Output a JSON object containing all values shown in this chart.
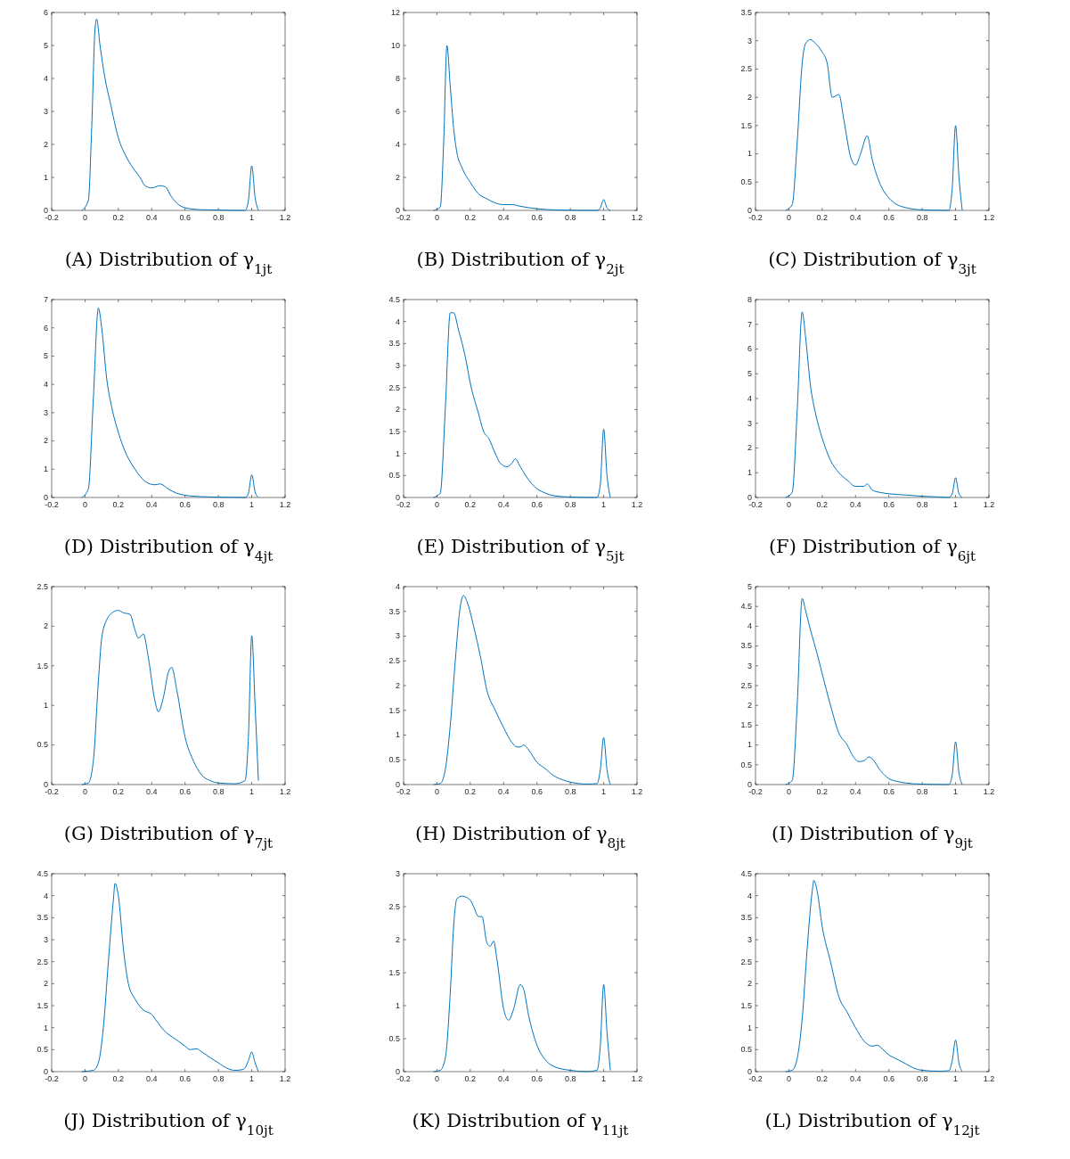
{
  "chart_data": [
    {
      "type": "line",
      "title": "(A) Distribution of γ$_{1jt}$",
      "xlim": [
        -0.2,
        1.2
      ],
      "xticks": [
        -0.2,
        0,
        0.2,
        0.4,
        0.6,
        0.8,
        1,
        1.2
      ],
      "ylim": [
        0,
        6
      ],
      "yticks": [
        0,
        1,
        2,
        3,
        4,
        5,
        6
      ],
      "color": "#0072bd",
      "x": [
        -0.02,
        0.02,
        0.04,
        0.06,
        0.07,
        0.09,
        0.12,
        0.15,
        0.2,
        0.25,
        0.3,
        0.33,
        0.36,
        0.4,
        0.45,
        0.48,
        0.52,
        0.56,
        0.6,
        0.7,
        0.8,
        0.9,
        0.96,
        0.98,
        1,
        1.02,
        1.04
      ],
      "values": [
        0,
        0.3,
        2.5,
        5.5,
        5.8,
        5,
        4,
        3.3,
        2.2,
        1.6,
        1.2,
        1,
        0.75,
        0.68,
        0.75,
        0.72,
        0.4,
        0.18,
        0.08,
        0.02,
        0.01,
        0,
        0,
        0.3,
        1.35,
        0.4,
        0
      ]
    },
    {
      "type": "line",
      "title": "(B) Distribution of γ$_{2jt}$",
      "xlim": [
        -0.2,
        1.2
      ],
      "xticks": [
        -0.2,
        0,
        0.2,
        0.4,
        0.6,
        0.8,
        1,
        1.2
      ],
      "ylim": [
        0,
        12
      ],
      "yticks": [
        0,
        2,
        4,
        6,
        8,
        10,
        12
      ],
      "color": "#0072bd",
      "x": [
        -0.02,
        0.02,
        0.04,
        0.06,
        0.08,
        0.1,
        0.12,
        0.15,
        0.2,
        0.25,
        0.3,
        0.35,
        0.4,
        0.45,
        0.5,
        0.6,
        0.7,
        0.8,
        0.96,
        0.98,
        1,
        1.02,
        1.04
      ],
      "values": [
        0,
        0.2,
        4,
        10,
        7.5,
        5,
        3.5,
        2.6,
        1.7,
        1,
        0.7,
        0.45,
        0.35,
        0.35,
        0.25,
        0.1,
        0.03,
        0.01,
        0,
        0.15,
        0.65,
        0.15,
        0
      ]
    },
    {
      "type": "line",
      "title": "(C) Distribution of γ$_{3jt}$",
      "xlim": [
        -0.2,
        1.2
      ],
      "xticks": [
        -0.2,
        0,
        0.2,
        0.4,
        0.6,
        0.8,
        1,
        1.2
      ],
      "ylim": [
        0,
        3.5
      ],
      "yticks": [
        0,
        0.5,
        1,
        1.5,
        2,
        2.5,
        3,
        3.5
      ],
      "color": "#0072bd",
      "x": [
        -0.02,
        0.02,
        0.05,
        0.08,
        0.1,
        0.13,
        0.16,
        0.2,
        0.23,
        0.26,
        0.3,
        0.33,
        0.37,
        0.4,
        0.43,
        0.47,
        0.5,
        0.55,
        0.6,
        0.65,
        0.7,
        0.8,
        0.96,
        0.98,
        1,
        1.02,
        1.04
      ],
      "values": [
        0,
        0.1,
        1.2,
        2.6,
        2.95,
        3.02,
        2.95,
        2.8,
        2.6,
        2,
        2.05,
        1.6,
        0.95,
        0.8,
        1,
        1.32,
        0.9,
        0.45,
        0.22,
        0.1,
        0.05,
        0.01,
        0,
        0.4,
        1.5,
        0.6,
        0
      ]
    },
    {
      "type": "line",
      "title": "(D) Distribution of γ$_{4jt}$",
      "xlim": [
        -0.2,
        1.2
      ],
      "xticks": [
        -0.2,
        0,
        0.2,
        0.4,
        0.6,
        0.8,
        1,
        1.2
      ],
      "ylim": [
        0,
        7
      ],
      "yticks": [
        0,
        1,
        2,
        3,
        4,
        5,
        6,
        7
      ],
      "color": "#0072bd",
      "x": [
        -0.02,
        0.02,
        0.05,
        0.08,
        0.1,
        0.13,
        0.16,
        0.2,
        0.25,
        0.3,
        0.33,
        0.38,
        0.42,
        0.45,
        0.5,
        0.55,
        0.6,
        0.7,
        0.8,
        0.96,
        0.98,
        1,
        1.02,
        1.04
      ],
      "values": [
        0,
        0.3,
        3.5,
        6.7,
        6,
        4.2,
        3.2,
        2.3,
        1.5,
        1,
        0.75,
        0.5,
        0.45,
        0.48,
        0.3,
        0.15,
        0.08,
        0.03,
        0.01,
        0,
        0.15,
        0.8,
        0.2,
        0
      ]
    },
    {
      "type": "line",
      "title": "(E) Distribution of γ$_{5jt}$",
      "xlim": [
        -0.2,
        1.2
      ],
      "xticks": [
        -0.2,
        0,
        0.2,
        0.4,
        0.6,
        0.8,
        1,
        1.2
      ],
      "ylim": [
        0,
        4.5
      ],
      "yticks": [
        0,
        0.5,
        1,
        1.5,
        2,
        2.5,
        3,
        3.5,
        4,
        4.5
      ],
      "color": "#0072bd",
      "x": [
        -0.02,
        0.02,
        0.05,
        0.08,
        0.1,
        0.13,
        0.17,
        0.2,
        0.25,
        0.28,
        0.31,
        0.35,
        0.38,
        0.42,
        0.45,
        0.47,
        0.5,
        0.55,
        0.6,
        0.65,
        0.7,
        0.8,
        0.96,
        0.98,
        1,
        1.02,
        1.04
      ],
      "values": [
        0,
        0.1,
        2,
        4.2,
        4.2,
        3.8,
        3.2,
        2.6,
        1.9,
        1.5,
        1.35,
        1,
        0.78,
        0.7,
        0.78,
        0.88,
        0.7,
        0.4,
        0.2,
        0.1,
        0.04,
        0.01,
        0,
        0.3,
        1.55,
        0.5,
        0
      ]
    },
    {
      "type": "line",
      "title": "(F) Distribution of γ$_{6jt}$",
      "xlim": [
        -0.2,
        1.2
      ],
      "xticks": [
        -0.2,
        0,
        0.2,
        0.4,
        0.6,
        0.8,
        1,
        1.2
      ],
      "ylim": [
        0,
        8
      ],
      "yticks": [
        0,
        1,
        2,
        3,
        4,
        5,
        6,
        7,
        8
      ],
      "color": "#0072bd",
      "x": [
        -0.02,
        0.02,
        0.05,
        0.08,
        0.1,
        0.13,
        0.16,
        0.2,
        0.25,
        0.3,
        0.35,
        0.4,
        0.43,
        0.45,
        0.47,
        0.5,
        0.55,
        0.6,
        0.7,
        0.8,
        0.9,
        0.96,
        0.98,
        1,
        1.02,
        1.04
      ],
      "values": [
        0,
        0.2,
        3.5,
        7.5,
        6.5,
        4.5,
        3.4,
        2.4,
        1.5,
        1,
        0.7,
        0.45,
        0.45,
        0.45,
        0.55,
        0.3,
        0.2,
        0.15,
        0.1,
        0.05,
        0.02,
        0,
        0.15,
        0.8,
        0.15,
        0
      ]
    },
    {
      "type": "line",
      "title": "(G) Distribution of γ$_{7jt}$",
      "xlim": [
        -0.2,
        1.2
      ],
      "xticks": [
        -0.2,
        0,
        0.2,
        0.4,
        0.6,
        0.8,
        1,
        1.2
      ],
      "ylim": [
        0,
        2.5
      ],
      "yticks": [
        0,
        0.5,
        1,
        1.5,
        2,
        2.5
      ],
      "color": "#0072bd",
      "x": [
        -0.02,
        0.02,
        0.05,
        0.08,
        0.1,
        0.13,
        0.17,
        0.2,
        0.23,
        0.27,
        0.3,
        0.32,
        0.35,
        0.38,
        0.42,
        0.44,
        0.47,
        0.5,
        0.52,
        0.55,
        0.6,
        0.65,
        0.7,
        0.75,
        0.8,
        0.9,
        0.96,
        0.98,
        1,
        1.02,
        1.04
      ],
      "values": [
        0,
        0.02,
        0.3,
        1.3,
        1.85,
        2.08,
        2.18,
        2.2,
        2.17,
        2.15,
        1.95,
        1.85,
        1.9,
        1.6,
        1.05,
        0.92,
        1.1,
        1.42,
        1.48,
        1.2,
        0.6,
        0.3,
        0.12,
        0.05,
        0.02,
        0.01,
        0.05,
        0.6,
        1.88,
        1,
        0.05
      ]
    },
    {
      "type": "line",
      "title": "(H) Distribution of γ$_{8jt}$",
      "xlim": [
        -0.2,
        1.2
      ],
      "xticks": [
        -0.2,
        0,
        0.2,
        0.4,
        0.6,
        0.8,
        1,
        1.2
      ],
      "ylim": [
        0,
        4
      ],
      "yticks": [
        0,
        0.5,
        1,
        1.5,
        2,
        2.5,
        3,
        3.5,
        4
      ],
      "color": "#0072bd",
      "x": [
        -0.02,
        0.02,
        0.05,
        0.08,
        0.11,
        0.14,
        0.16,
        0.18,
        0.22,
        0.26,
        0.3,
        0.35,
        0.4,
        0.45,
        0.48,
        0.5,
        0.52,
        0.55,
        0.6,
        0.65,
        0.7,
        0.75,
        0.8,
        0.9,
        0.96,
        0.98,
        1,
        1.02,
        1.04
      ],
      "values": [
        0,
        0.02,
        0.3,
        1.2,
        2.5,
        3.6,
        3.82,
        3.7,
        3.2,
        2.6,
        1.9,
        1.5,
        1.15,
        0.85,
        0.76,
        0.76,
        0.8,
        0.7,
        0.45,
        0.32,
        0.18,
        0.1,
        0.05,
        0.01,
        0.02,
        0.3,
        0.95,
        0.3,
        0
      ]
    },
    {
      "type": "line",
      "title": "(I) Distribution of γ$_{9jt}$",
      "xlim": [
        -0.2,
        1.2
      ],
      "xticks": [
        -0.2,
        0,
        0.2,
        0.4,
        0.6,
        0.8,
        1,
        1.2
      ],
      "ylim": [
        0,
        5
      ],
      "yticks": [
        0,
        0.5,
        1,
        1.5,
        2,
        2.5,
        3,
        3.5,
        4,
        4.5,
        5
      ],
      "color": "#0072bd",
      "x": [
        -0.02,
        0.02,
        0.05,
        0.08,
        0.1,
        0.13,
        0.17,
        0.2,
        0.25,
        0.3,
        0.35,
        0.38,
        0.42,
        0.45,
        0.48,
        0.5,
        0.55,
        0.6,
        0.65,
        0.7,
        0.8,
        0.96,
        0.98,
        1,
        1.02,
        1.04
      ],
      "values": [
        0,
        0.1,
        2,
        4.7,
        4.4,
        3.9,
        3.3,
        2.8,
        2,
        1.3,
        1,
        0.75,
        0.58,
        0.6,
        0.7,
        0.65,
        0.35,
        0.15,
        0.08,
        0.04,
        0.01,
        0,
        0.25,
        1.08,
        0.3,
        0
      ]
    },
    {
      "type": "line",
      "title": "(J) Distribution of γ$_{10jt}$",
      "xlim": [
        -0.2,
        1.2
      ],
      "xticks": [
        -0.2,
        0,
        0.2,
        0.4,
        0.6,
        0.8,
        1,
        1.2
      ],
      "ylim": [
        0,
        4.5
      ],
      "yticks": [
        0,
        0.5,
        1,
        1.5,
        2,
        2.5,
        3,
        3.5,
        4,
        4.5
      ],
      "color": "#0072bd",
      "x": [
        -0.02,
        0.05,
        0.08,
        0.11,
        0.14,
        0.17,
        0.18,
        0.2,
        0.23,
        0.26,
        0.3,
        0.35,
        0.4,
        0.43,
        0.47,
        0.5,
        0.55,
        0.6,
        0.63,
        0.67,
        0.7,
        0.75,
        0.8,
        0.85,
        0.9,
        0.95,
        0.98,
        1,
        1.02,
        1.04
      ],
      "values": [
        0,
        0.03,
        0.2,
        1,
        2.5,
        3.9,
        4.28,
        4,
        2.8,
        2,
        1.65,
        1.4,
        1.3,
        1.15,
        0.95,
        0.85,
        0.72,
        0.58,
        0.5,
        0.52,
        0.45,
        0.32,
        0.2,
        0.08,
        0.03,
        0.05,
        0.25,
        0.45,
        0.2,
        0
      ]
    },
    {
      "type": "line",
      "title": "(K) Distribution of γ$_{11jt}$",
      "xlim": [
        -0.2,
        1.2
      ],
      "xticks": [
        -0.2,
        0,
        0.2,
        0.4,
        0.6,
        0.8,
        1,
        1.2
      ],
      "ylim": [
        0,
        3
      ],
      "yticks": [
        0,
        0.5,
        1,
        1.5,
        2,
        2.5,
        3
      ],
      "color": "#0072bd",
      "x": [
        -0.02,
        0.02,
        0.05,
        0.08,
        0.1,
        0.12,
        0.15,
        0.2,
        0.22,
        0.25,
        0.27,
        0.3,
        0.32,
        0.34,
        0.36,
        0.4,
        0.43,
        0.46,
        0.5,
        0.52,
        0.55,
        0.6,
        0.65,
        0.7,
        0.8,
        0.9,
        0.96,
        0.98,
        1,
        1.02,
        1.04
      ],
      "values": [
        0,
        0.02,
        0.2,
        1.2,
        2.2,
        2.62,
        2.66,
        2.6,
        2.5,
        2.35,
        2.35,
        1.95,
        1.9,
        1.98,
        1.7,
        0.95,
        0.78,
        0.95,
        1.32,
        1.25,
        0.85,
        0.4,
        0.18,
        0.08,
        0.02,
        0,
        0.02,
        0.4,
        1.32,
        0.6,
        0.02
      ]
    },
    {
      "type": "line",
      "title": "(L) Distribution of γ$_{12jt}$",
      "xlim": [
        -0.2,
        1.2
      ],
      "xticks": [
        -0.2,
        0,
        0.2,
        0.4,
        0.6,
        0.8,
        1,
        1.2
      ],
      "ylim": [
        0,
        4.5
      ],
      "yticks": [
        0,
        0.5,
        1,
        1.5,
        2,
        2.5,
        3,
        3.5,
        4,
        4.5
      ],
      "color": "#0072bd",
      "x": [
        -0.02,
        0.02,
        0.05,
        0.08,
        0.11,
        0.14,
        0.15,
        0.17,
        0.2,
        0.25,
        0.3,
        0.35,
        0.4,
        0.45,
        0.5,
        0.53,
        0.56,
        0.6,
        0.65,
        0.7,
        0.75,
        0.8,
        0.9,
        0.96,
        0.98,
        1,
        1.02,
        1.04
      ],
      "values": [
        0,
        0.03,
        0.3,
        1.2,
        2.8,
        4.1,
        4.35,
        4.1,
        3.3,
        2.5,
        1.7,
        1.35,
        1,
        0.7,
        0.58,
        0.6,
        0.52,
        0.38,
        0.28,
        0.18,
        0.08,
        0.03,
        0.01,
        0.02,
        0.25,
        0.72,
        0.2,
        0
      ]
    }
  ]
}
